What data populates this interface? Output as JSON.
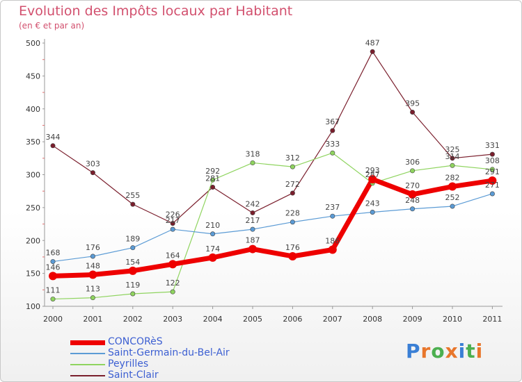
{
  "chart_data": {
    "type": "line",
    "title": "Evolution des Impôts locaux par Habitant",
    "subtitle": "(en € et par an)",
    "categories": [
      "2000",
      "2001",
      "2002",
      "2003",
      "2004",
      "2005",
      "2006",
      "2007",
      "2008",
      "2009",
      "2010",
      "2011"
    ],
    "ylim": [
      100,
      500
    ],
    "yticks": [
      100,
      150,
      200,
      250,
      300,
      350,
      400,
      450,
      500
    ],
    "grid": false,
    "series": [
      {
        "name": "Saint-Clair",
        "color": "#7a1e2c",
        "width": 1.2,
        "values": [
          344,
          303,
          255,
          226,
          281,
          242,
          272,
          367,
          487,
          395,
          325,
          331
        ],
        "labels": [
          "344",
          "303",
          "255",
          "226",
          "281",
          "242",
          "272",
          "367",
          "487",
          "395",
          "325",
          "331"
        ]
      },
      {
        "name": "Peyrilles",
        "color": "#8fd45f",
        "width": 1.2,
        "values": [
          111,
          113,
          119,
          122,
          292,
          318,
          312,
          333,
          287,
          306,
          314,
          308
        ],
        "labels": [
          "111",
          "113",
          "119",
          "122",
          "292",
          "318",
          "312",
          "333",
          "287",
          "306",
          "314",
          "308"
        ]
      },
      {
        "name": "Saint-Germain-du-Bel-Air",
        "color": "#5b9bd5",
        "width": 1.2,
        "values": [
          168,
          176,
          189,
          217,
          210,
          217,
          228,
          237,
          243,
          248,
          252,
          271
        ],
        "labels": [
          "168",
          "176",
          "189",
          "217",
          "210",
          "217",
          "228",
          "237",
          "243",
          "248",
          "252",
          "271"
        ]
      },
      {
        "name": "CONCORèS",
        "color": "#ee0000",
        "width": 7,
        "values": [
          146,
          148,
          154,
          164,
          174,
          187,
          176,
          186,
          293,
          270,
          282,
          291
        ],
        "labels": [
          "146",
          "148",
          "154",
          "164",
          "174",
          "187",
          "176",
          "186",
          "293",
          "270",
          "282",
          "291"
        ]
      }
    ],
    "legend_position": "bottom-left"
  },
  "legend": [
    {
      "name": "CONCORèS",
      "color": "#ee0000"
    },
    {
      "name": "Saint-Germain-du-Bel-Air",
      "color": "#5b9bd5"
    },
    {
      "name": "Peyrilles",
      "color": "#8fd45f"
    },
    {
      "name": "Saint-Clair",
      "color": "#7a1e2c"
    }
  ],
  "logo": {
    "text": "Proxiti",
    "colors": [
      "#3a7fd5",
      "#e8762b",
      "#4caf50",
      "#e8762b",
      "#3a7fd5",
      "#4caf50",
      "#e8762b"
    ]
  }
}
